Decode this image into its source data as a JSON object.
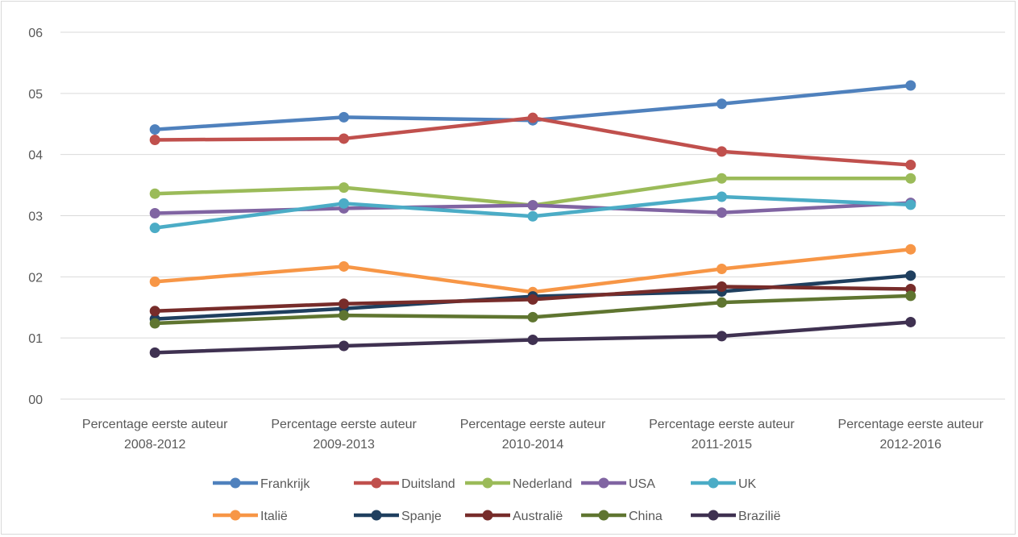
{
  "chart_data": {
    "type": "line",
    "title": "",
    "xlabel": "",
    "ylabel": "",
    "categories": [
      [
        "Percentage eerste auteur",
        "2008-2012"
      ],
      [
        "Percentage eerste auteur",
        "2009-2013"
      ],
      [
        "Percentage eerste auteur",
        "2010-2014"
      ],
      [
        "Percentage eerste auteur",
        "2011-2015"
      ],
      [
        "Percentage eerste auteur",
        "2012-2016"
      ]
    ],
    "ylim": [
      0,
      6
    ],
    "yticks": [
      {
        "value": 0,
        "label": "00"
      },
      {
        "value": 1,
        "label": "01"
      },
      {
        "value": 2,
        "label": "02"
      },
      {
        "value": 3,
        "label": "03"
      },
      {
        "value": 4,
        "label": "04"
      },
      {
        "value": 5,
        "label": "05"
      },
      {
        "value": 6,
        "label": "06"
      }
    ],
    "grid": "horizontal",
    "legend_position": "bottom",
    "series": [
      {
        "name": "Frankrijk",
        "color": "#4f81bd",
        "values": [
          4.41,
          4.61,
          4.56,
          4.83,
          5.13
        ]
      },
      {
        "name": "Duitsland",
        "color": "#c0504d",
        "values": [
          4.24,
          4.26,
          4.6,
          4.05,
          3.83
        ]
      },
      {
        "name": "Nederland",
        "color": "#9bbb59",
        "values": [
          3.36,
          3.46,
          3.17,
          3.61,
          3.61
        ]
      },
      {
        "name": "USA",
        "color": "#8064a2",
        "values": [
          3.04,
          3.12,
          3.17,
          3.05,
          3.21
        ]
      },
      {
        "name": "UK",
        "color": "#4bacc6",
        "values": [
          2.8,
          3.2,
          2.99,
          3.31,
          3.18
        ]
      },
      {
        "name": "Italië",
        "color": "#f79646",
        "values": [
          1.92,
          2.17,
          1.75,
          2.13,
          2.45
        ]
      },
      {
        "name": "Spanje",
        "color": "#1f3f5f",
        "values": [
          1.31,
          1.48,
          1.68,
          1.76,
          2.02
        ]
      },
      {
        "name": "Australië",
        "color": "#772c2a",
        "values": [
          1.44,
          1.56,
          1.63,
          1.84,
          1.8
        ]
      },
      {
        "name": "China",
        "color": "#5f7530",
        "values": [
          1.24,
          1.37,
          1.34,
          1.58,
          1.69
        ]
      },
      {
        "name": "Brazilië",
        "color": "#3f3151",
        "values": [
          0.76,
          0.87,
          0.97,
          1.03,
          1.26
        ]
      }
    ]
  }
}
